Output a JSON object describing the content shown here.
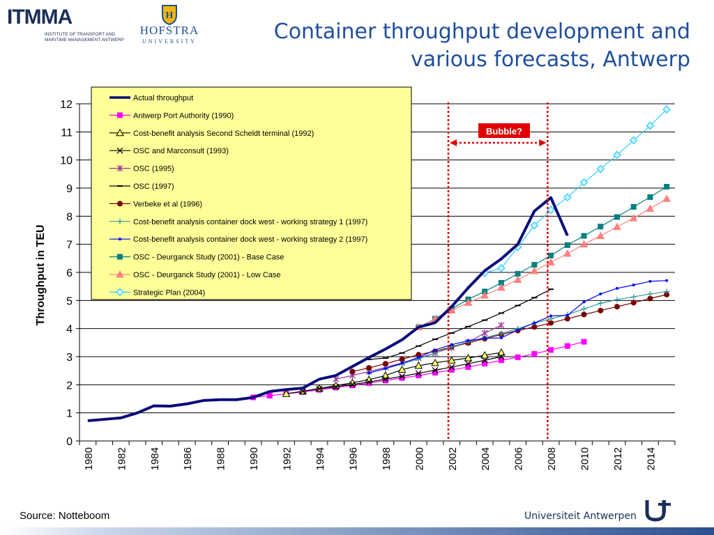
{
  "header": {
    "title_line1": "Container throughput development and",
    "title_line2": "various forecasts, Antwerp",
    "logo_itmma_text": "ITMMA",
    "logo_itmma_sub1": "INSTITUTE OF TRANSPORT AND",
    "logo_itmma_sub2": "MARITIME MANAGEMENT ANTWERP",
    "logo_hofstra_name": "HOFSTRA",
    "logo_hofstra_uni": "UNIVERSITY"
  },
  "footer": {
    "source": "Source: Notteboom",
    "university": "Universiteit Antwerpen"
  },
  "colors": {
    "title": "#1f4e9c",
    "legend_bg": "#ffff99",
    "bubble_red": "#e00000"
  },
  "chart_data": {
    "type": "line",
    "ylabel": "Throughput in TEU",
    "xlabel": "",
    "xlim": [
      1980,
      2015
    ],
    "ylim": [
      0,
      12
    ],
    "y_ticks": [
      0,
      1,
      2,
      3,
      4,
      5,
      6,
      7,
      8,
      9,
      10,
      11,
      12
    ],
    "x_ticks": [
      1980,
      1982,
      1984,
      1986,
      1988,
      1990,
      1992,
      1994,
      1996,
      1998,
      2000,
      2002,
      2004,
      2006,
      2008,
      2010,
      2012,
      2014
    ],
    "grid": "horizontal",
    "legend_position": "top-left",
    "annotations": [
      {
        "text": "Bubble?",
        "type": "label",
        "x_range": [
          2002,
          2008
        ]
      }
    ],
    "vertical_reference_lines": [
      2001.8,
      2007.8
    ],
    "series": [
      {
        "name": "Actual throughput",
        "color": "#0a0a7a",
        "marker": "none",
        "width": 4,
        "points": [
          [
            1980,
            0.72
          ],
          [
            1981,
            0.77
          ],
          [
            1982,
            0.82
          ],
          [
            1983,
            1.0
          ],
          [
            1984,
            1.25
          ],
          [
            1985,
            1.24
          ],
          [
            1986,
            1.32
          ],
          [
            1987,
            1.44
          ],
          [
            1988,
            1.47
          ],
          [
            1989,
            1.47
          ],
          [
            1990,
            1.55
          ],
          [
            1991,
            1.76
          ],
          [
            1992,
            1.83
          ],
          [
            1993,
            1.88
          ],
          [
            1994,
            2.2
          ],
          [
            1995,
            2.33
          ],
          [
            1996,
            2.65
          ],
          [
            1997,
            2.97
          ],
          [
            1998,
            3.27
          ],
          [
            1999,
            3.6
          ],
          [
            2000,
            4.05
          ],
          [
            2001,
            4.21
          ],
          [
            2002,
            4.78
          ],
          [
            2003,
            5.45
          ],
          [
            2004,
            6.06
          ],
          [
            2005,
            6.48
          ],
          [
            2006,
            7.0
          ],
          [
            2007,
            8.18
          ],
          [
            2008,
            8.66
          ],
          [
            2009,
            7.31
          ]
        ]
      },
      {
        "name": "Antwerp Port Authority (1990)",
        "color": "#ff00ff",
        "marker": "square",
        "points": [
          [
            1990,
            1.55
          ],
          [
            1991,
            1.61
          ],
          [
            1992,
            1.68
          ],
          [
            1993,
            1.74
          ],
          [
            1994,
            1.82
          ],
          [
            1995,
            1.9
          ],
          [
            1996,
            1.98
          ],
          [
            1997,
            2.06
          ],
          [
            1998,
            2.15
          ],
          [
            1999,
            2.24
          ],
          [
            2000,
            2.33
          ],
          [
            2001,
            2.43
          ],
          [
            2002,
            2.53
          ],
          [
            2003,
            2.63
          ],
          [
            2004,
            2.75
          ],
          [
            2005,
            2.87
          ],
          [
            2006,
            2.98
          ],
          [
            2007,
            3.1
          ],
          [
            2008,
            3.24
          ],
          [
            2009,
            3.38
          ],
          [
            2010,
            3.53
          ]
        ]
      },
      {
        "name": "Cost-benefit analysis Second Scheldt terminal (1992)",
        "color": "#000000",
        "marker": "triangle",
        "fill": "#ffff66",
        "points": [
          [
            1992,
            1.68
          ],
          [
            1993,
            1.77
          ],
          [
            1994,
            1.87
          ],
          [
            1995,
            1.97
          ],
          [
            1996,
            2.07
          ],
          [
            1997,
            2.18
          ],
          [
            1998,
            2.33
          ],
          [
            1999,
            2.54
          ],
          [
            2000,
            2.68
          ],
          [
            2001,
            2.78
          ],
          [
            2002,
            2.87
          ],
          [
            2003,
            2.95
          ],
          [
            2004,
            3.05
          ],
          [
            2005,
            3.15
          ]
        ]
      },
      {
        "name": "OSC and Marconsult (1993)",
        "color": "#000000",
        "marker": "x",
        "points": [
          [
            1993,
            1.77
          ],
          [
            1994,
            1.86
          ],
          [
            1995,
            1.93
          ],
          [
            1996,
            2.01
          ],
          [
            1997,
            2.1
          ],
          [
            1998,
            2.2
          ],
          [
            1999,
            2.3
          ],
          [
            2000,
            2.41
          ],
          [
            2001,
            2.52
          ],
          [
            2002,
            2.63
          ],
          [
            2003,
            2.75
          ],
          [
            2004,
            2.87
          ],
          [
            2005,
            3.0
          ]
        ]
      },
      {
        "name": "OSC (1995)",
        "color": "#993399",
        "marker": "star",
        "points": [
          [
            1995,
            2.2
          ],
          [
            1996,
            2.33
          ],
          [
            1997,
            2.47
          ],
          [
            1998,
            2.62
          ],
          [
            1999,
            2.78
          ],
          [
            2000,
            2.95
          ],
          [
            2001,
            3.13
          ],
          [
            2002,
            3.32
          ],
          [
            2003,
            3.52
          ],
          [
            2004,
            3.84
          ],
          [
            2005,
            4.12
          ]
        ]
      },
      {
        "name": "OSC (1997)",
        "color": "#000000",
        "marker": "dash",
        "points": [
          [
            1997,
            2.9
          ],
          [
            1998,
            2.95
          ],
          [
            1999,
            3.13
          ],
          [
            2000,
            3.38
          ],
          [
            2001,
            3.62
          ],
          [
            2002,
            3.84
          ],
          [
            2003,
            4.07
          ],
          [
            2004,
            4.3
          ],
          [
            2005,
            4.55
          ],
          [
            2006,
            4.82
          ],
          [
            2007,
            5.1
          ],
          [
            2008,
            5.4
          ]
        ]
      },
      {
        "name": "Verbeke et al (1996)",
        "color": "#7a0000",
        "marker": "circle",
        "points": [
          [
            1996,
            2.47
          ],
          [
            1997,
            2.6
          ],
          [
            1998,
            2.75
          ],
          [
            1999,
            2.91
          ],
          [
            2000,
            3.07
          ],
          [
            2001,
            3.19
          ],
          [
            2002,
            3.35
          ],
          [
            2003,
            3.49
          ],
          [
            2004,
            3.64
          ],
          [
            2005,
            3.79
          ],
          [
            2006,
            3.93
          ],
          [
            2007,
            4.06
          ],
          [
            2008,
            4.2
          ],
          [
            2009,
            4.35
          ],
          [
            2010,
            4.5
          ],
          [
            2011,
            4.64
          ],
          [
            2012,
            4.78
          ],
          [
            2013,
            4.92
          ],
          [
            2014,
            5.07
          ],
          [
            2015,
            5.21
          ]
        ]
      },
      {
        "name": "Cost-benefit analysis container dock west - working strategy 1 (1997)",
        "color": "#339999",
        "marker": "plus",
        "points": [
          [
            1997,
            2.42
          ],
          [
            1998,
            2.57
          ],
          [
            1999,
            2.74
          ],
          [
            2000,
            2.92
          ],
          [
            2001,
            3.13
          ],
          [
            2002,
            3.35
          ],
          [
            2003,
            3.53
          ],
          [
            2004,
            3.68
          ],
          [
            2005,
            3.82
          ],
          [
            2006,
            4.0
          ],
          [
            2007,
            4.19
          ],
          [
            2008,
            4.35
          ],
          [
            2009,
            4.5
          ],
          [
            2010,
            4.7
          ],
          [
            2011,
            4.9
          ],
          [
            2012,
            5.03
          ],
          [
            2013,
            5.13
          ],
          [
            2014,
            5.23
          ],
          [
            2015,
            5.32
          ]
        ]
      },
      {
        "name": "Cost-benefit analysis container dock west - working strategy 2 (1997)",
        "color": "#0000ff",
        "marker": "smalldot",
        "points": [
          [
            1997,
            2.42
          ],
          [
            1998,
            2.58
          ],
          [
            1999,
            2.77
          ],
          [
            2000,
            2.97
          ],
          [
            2001,
            3.24
          ],
          [
            2002,
            3.43
          ],
          [
            2003,
            3.57
          ],
          [
            2004,
            3.65
          ],
          [
            2005,
            3.67
          ],
          [
            2006,
            3.95
          ],
          [
            2007,
            4.2
          ],
          [
            2008,
            4.45
          ],
          [
            2009,
            4.47
          ],
          [
            2010,
            4.95
          ],
          [
            2011,
            5.23
          ],
          [
            2012,
            5.43
          ],
          [
            2013,
            5.55
          ],
          [
            2014,
            5.68
          ],
          [
            2015,
            5.71
          ]
        ]
      },
      {
        "name": "OSC - Deurganck Study (2001) - Base Case",
        "color": "#008080",
        "marker": "square",
        "points": [
          [
            2000,
            4.05
          ],
          [
            2001,
            4.35
          ],
          [
            2002,
            4.7
          ],
          [
            2003,
            5.04
          ],
          [
            2004,
            5.32
          ],
          [
            2005,
            5.63
          ],
          [
            2006,
            5.95
          ],
          [
            2007,
            6.27
          ],
          [
            2008,
            6.6
          ],
          [
            2009,
            6.97
          ],
          [
            2010,
            7.3
          ],
          [
            2011,
            7.63
          ],
          [
            2012,
            7.97
          ],
          [
            2013,
            8.33
          ],
          [
            2014,
            8.68
          ],
          [
            2015,
            9.05
          ]
        ]
      },
      {
        "name": "OSC - Deurganck Study (2001) - Low Case",
        "color": "#ff8080",
        "marker": "triangle",
        "points": [
          [
            2000,
            4.05
          ],
          [
            2001,
            4.34
          ],
          [
            2002,
            4.65
          ],
          [
            2003,
            4.92
          ],
          [
            2004,
            5.18
          ],
          [
            2005,
            5.46
          ],
          [
            2006,
            5.74
          ],
          [
            2007,
            6.05
          ],
          [
            2008,
            6.36
          ],
          [
            2009,
            6.67
          ],
          [
            2010,
            7.0
          ],
          [
            2011,
            7.3
          ],
          [
            2012,
            7.62
          ],
          [
            2013,
            7.93
          ],
          [
            2014,
            8.27
          ],
          [
            2015,
            8.62
          ]
        ]
      },
      {
        "name": "Strategic Plan (2004)",
        "color": "#33ccff",
        "marker": "diamond",
        "points": [
          [
            2004,
            5.98
          ],
          [
            2005,
            6.15
          ],
          [
            2006,
            6.9
          ],
          [
            2007,
            7.67
          ],
          [
            2008,
            8.22
          ],
          [
            2009,
            8.67
          ],
          [
            2010,
            9.2
          ],
          [
            2011,
            9.68
          ],
          [
            2012,
            10.18
          ],
          [
            2013,
            10.7
          ],
          [
            2014,
            11.22
          ],
          [
            2015,
            11.8
          ]
        ]
      }
    ]
  }
}
